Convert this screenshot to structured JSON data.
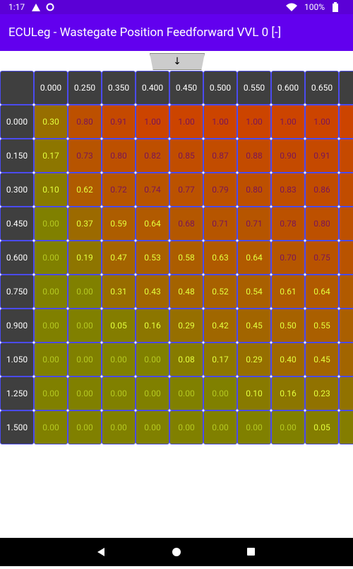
{
  "status_bar": {
    "time": "1:17",
    "battery": "100%"
  },
  "app_bar": {
    "title": "ECULeg - Wastegate Position Feedforward VVL 0 [-]"
  },
  "toggle_button": {
    "label": "↓"
  },
  "table": {
    "columns": [
      "0.000",
      "0.250",
      "0.350",
      "0.400",
      "0.450",
      "0.500",
      "0.550",
      "0.600",
      "0.650"
    ],
    "rows": [
      {
        "label": "0.000",
        "values": [
          0.3,
          0.8,
          0.91,
          1.0,
          1.0,
          1.0,
          1.0,
          1.0,
          1.0
        ],
        "value_labels": [
          "0.30",
          "0.80",
          "0.91",
          "1.00",
          "1.00",
          "1.00",
          "1.00",
          "1.00",
          "1.00"
        ]
      },
      {
        "label": "0.150",
        "values": [
          0.17,
          0.73,
          0.8,
          0.82,
          0.85,
          0.87,
          0.88,
          0.9,
          0.91
        ],
        "value_labels": [
          "0.17",
          "0.73",
          "0.80",
          "0.82",
          "0.85",
          "0.87",
          "0.88",
          "0.90",
          "0.91"
        ]
      },
      {
        "label": "0.300",
        "values": [
          0.1,
          0.62,
          0.72,
          0.74,
          0.77,
          0.79,
          0.8,
          0.83,
          0.86
        ],
        "value_labels": [
          "0.10",
          "0.62",
          "0.72",
          "0.74",
          "0.77",
          "0.79",
          "0.80",
          "0.83",
          "0.86"
        ]
      },
      {
        "label": "0.450",
        "values": [
          0.0,
          0.37,
          0.59,
          0.64,
          0.68,
          0.71,
          0.71,
          0.78,
          0.8
        ],
        "value_labels": [
          "0.00",
          "0.37",
          "0.59",
          "0.64",
          "0.68",
          "0.71",
          "0.71",
          "0.78",
          "0.80"
        ]
      },
      {
        "label": "0.600",
        "values": [
          0.0,
          0.19,
          0.47,
          0.53,
          0.58,
          0.63,
          0.64,
          0.7,
          0.75
        ],
        "value_labels": [
          "0.00",
          "0.19",
          "0.47",
          "0.53",
          "0.58",
          "0.63",
          "0.64",
          "0.70",
          "0.75"
        ]
      },
      {
        "label": "0.750",
        "values": [
          0.0,
          0.0,
          0.31,
          0.43,
          0.48,
          0.52,
          0.54,
          0.61,
          0.64
        ],
        "value_labels": [
          "0.00",
          "0.00",
          "0.31",
          "0.43",
          "0.48",
          "0.52",
          "0.54",
          "0.61",
          "0.64"
        ]
      },
      {
        "label": "0.900",
        "values": [
          0.0,
          0.0,
          0.05,
          0.16,
          0.29,
          0.42,
          0.45,
          0.5,
          0.55
        ],
        "value_labels": [
          "0.00",
          "0.00",
          "0.05",
          "0.16",
          "0.29",
          "0.42",
          "0.45",
          "0.50",
          "0.55"
        ]
      },
      {
        "label": "1.050",
        "values": [
          0.0,
          0.0,
          0.0,
          0.0,
          0.08,
          0.17,
          0.29,
          0.4,
          0.45
        ],
        "value_labels": [
          "0.00",
          "0.00",
          "0.00",
          "0.00",
          "0.08",
          "0.17",
          "0.29",
          "0.40",
          "0.45"
        ]
      },
      {
        "label": "1.250",
        "values": [
          0.0,
          0.0,
          0.0,
          0.0,
          0.0,
          0.0,
          0.1,
          0.16,
          0.23
        ],
        "value_labels": [
          "0.00",
          "0.00",
          "0.00",
          "0.00",
          "0.00",
          "0.00",
          "0.10",
          "0.16",
          "0.23"
        ]
      },
      {
        "label": "1.500",
        "values": [
          0.0,
          0.0,
          0.0,
          0.0,
          0.0,
          0.0,
          0.0,
          0.0,
          0.05
        ],
        "value_labels": [
          "0.00",
          "0.00",
          "0.00",
          "0.00",
          "0.00",
          "0.00",
          "0.00",
          "0.00",
          "0.05"
        ]
      }
    ]
  }
}
